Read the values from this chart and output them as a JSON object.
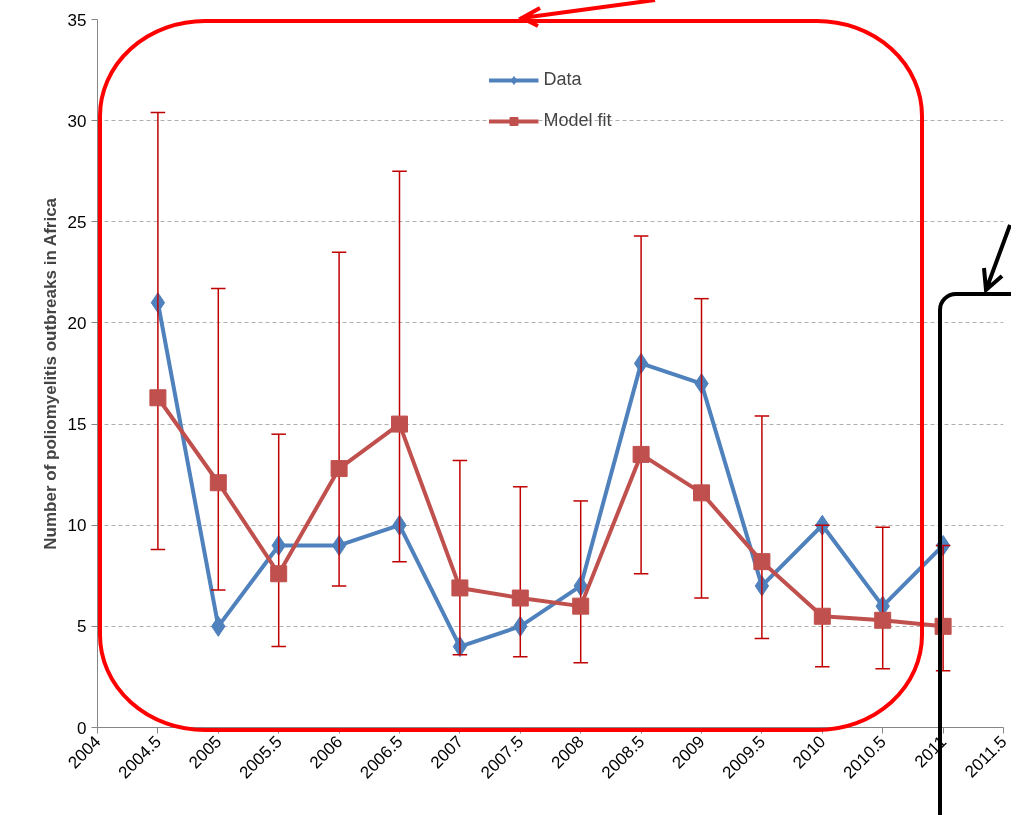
{
  "chart_data": {
    "type": "line",
    "ylabel": "Number of poliomyelitis outbreaks in Africa",
    "x": [
      2004.5,
      2005,
      2005.5,
      2006,
      2006.5,
      2007,
      2007.5,
      2008,
      2008.5,
      2009,
      2009.5,
      2010,
      2010.5,
      2011
    ],
    "series": [
      {
        "name": "Data",
        "color": "#4f81bd",
        "marker": "diamond",
        "values": [
          21,
          5,
          9,
          9,
          10,
          4,
          5,
          7,
          18,
          17,
          7,
          10,
          6,
          9
        ]
      },
      {
        "name": "Model fit",
        "color": "#c0504d",
        "marker": "square",
        "values": [
          16.3,
          12.1,
          7.6,
          12.8,
          15.0,
          6.9,
          6.4,
          6.0,
          13.5,
          11.6,
          8.2,
          5.5,
          5.3,
          5.0
        ],
        "errors": [
          [
            8.8,
            30.4
          ],
          [
            6.8,
            21.7
          ],
          [
            4.0,
            14.5
          ],
          [
            7.0,
            23.5
          ],
          [
            8.2,
            27.5
          ],
          [
            3.6,
            13.2
          ],
          [
            3.5,
            11.9
          ],
          [
            3.2,
            11.2
          ],
          [
            7.6,
            24.3
          ],
          [
            6.4,
            21.2
          ],
          [
            4.4,
            15.4
          ],
          [
            3.0,
            10.0
          ],
          [
            2.9,
            9.9
          ],
          [
            2.8,
            9.0
          ]
        ]
      }
    ],
    "xlim": [
      2004,
      2011.5
    ],
    "xticks": [
      2004,
      2004.5,
      2005,
      2005.5,
      2006,
      2006.5,
      2007,
      2007.5,
      2008,
      2008.5,
      2009,
      2009.5,
      2010,
      2010.5,
      2011,
      2011.5
    ],
    "ylim": [
      0,
      35
    ],
    "yticks": [
      0,
      5,
      10,
      15,
      20,
      25,
      30,
      35
    ],
    "grid": "y",
    "legend": "top",
    "line_style": "solid"
  }
}
